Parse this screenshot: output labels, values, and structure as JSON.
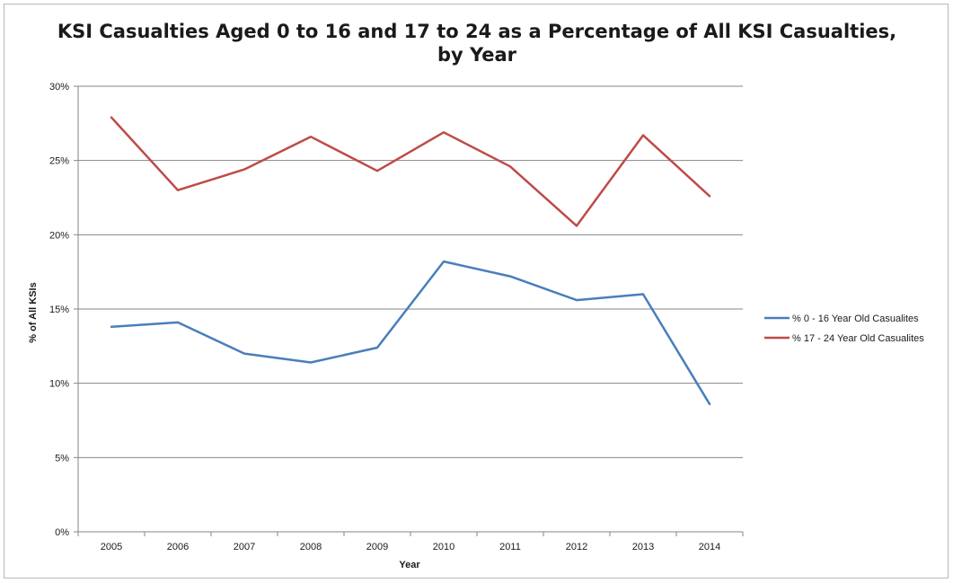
{
  "chart_data": {
    "type": "line",
    "title_lines": [
      "KSI Casualties Aged 0 to 16  and 17 to 24 as a Percentage of All KSI Casualties,",
      "by Year"
    ],
    "xlabel": "Year",
    "ylabel": "% of All KSIs",
    "categories": [
      "2005",
      "2006",
      "2007",
      "2008",
      "2009",
      "2010",
      "2011",
      "2012",
      "2013",
      "2014"
    ],
    "ylim": [
      0,
      30
    ],
    "yticks": [
      0,
      5,
      10,
      15,
      20,
      25,
      30
    ],
    "ytick_labels": [
      "0%",
      "5%",
      "10%",
      "15%",
      "20%",
      "25%",
      "30%"
    ],
    "grid": "horizontal",
    "legend_position": "right",
    "series": [
      {
        "name": "% 0 - 16 Year Old Casualites",
        "color": "#4a7ebb",
        "values": [
          13.8,
          14.1,
          12.0,
          11.4,
          12.4,
          18.2,
          17.2,
          15.6,
          16.0,
          8.6
        ]
      },
      {
        "name": "% 17 - 24 Year Old Casualites",
        "color": "#be4b48",
        "values": [
          27.9,
          23.0,
          24.4,
          26.6,
          24.3,
          26.9,
          24.6,
          20.6,
          26.7,
          22.6
        ]
      }
    ]
  }
}
